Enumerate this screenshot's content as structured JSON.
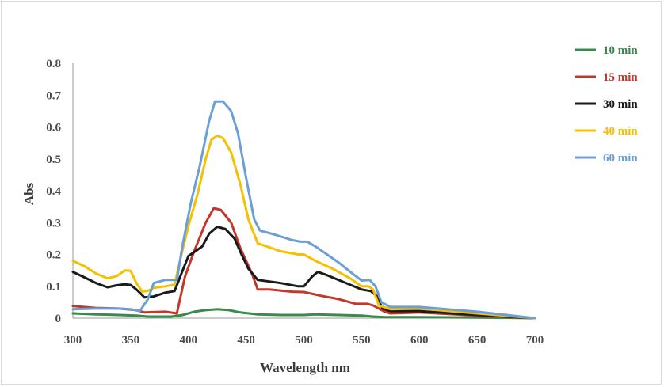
{
  "chart_data": {
    "type": "line",
    "title": "",
    "xlabel": "Wavelength nm",
    "ylabel": "Abs",
    "xlim": [
      300,
      700
    ],
    "ylim": [
      0,
      0.8
    ],
    "xticks": [
      300,
      350,
      400,
      450,
      500,
      550,
      600,
      650,
      700
    ],
    "yticks": [
      "0",
      "0.1",
      "0.2",
      "0.3",
      "0.4",
      "0.5",
      "0.6",
      "0.7",
      "0.8"
    ],
    "grid": false,
    "legend_position": "right",
    "series": [
      {
        "name": "10 min",
        "color": "#3a8a4e",
        "points": [
          [
            300,
            0.015
          ],
          [
            320,
            0.012
          ],
          [
            340,
            0.01
          ],
          [
            355,
            0.008
          ],
          [
            365,
            0.005
          ],
          [
            385,
            0.005
          ],
          [
            395,
            0.01
          ],
          [
            405,
            0.02
          ],
          [
            415,
            0.025
          ],
          [
            425,
            0.028
          ],
          [
            435,
            0.025
          ],
          [
            445,
            0.018
          ],
          [
            460,
            0.012
          ],
          [
            480,
            0.01
          ],
          [
            500,
            0.01
          ],
          [
            510,
            0.012
          ],
          [
            530,
            0.01
          ],
          [
            550,
            0.008
          ],
          [
            560,
            0.005
          ],
          [
            570,
            0.003
          ],
          [
            600,
            0.003
          ],
          [
            650,
            0.002
          ],
          [
            700,
            0.0
          ]
        ]
      },
      {
        "name": "15 min",
        "color": "#c0392b",
        "points": [
          [
            300,
            0.038
          ],
          [
            320,
            0.032
          ],
          [
            340,
            0.03
          ],
          [
            355,
            0.025
          ],
          [
            362,
            0.018
          ],
          [
            380,
            0.02
          ],
          [
            390,
            0.015
          ],
          [
            397,
            0.13
          ],
          [
            405,
            0.21
          ],
          [
            415,
            0.3
          ],
          [
            422,
            0.345
          ],
          [
            428,
            0.34
          ],
          [
            437,
            0.3
          ],
          [
            445,
            0.22
          ],
          [
            455,
            0.14
          ],
          [
            460,
            0.09
          ],
          [
            470,
            0.09
          ],
          [
            490,
            0.083
          ],
          [
            500,
            0.082
          ],
          [
            515,
            0.07
          ],
          [
            530,
            0.06
          ],
          [
            545,
            0.045
          ],
          [
            555,
            0.045
          ],
          [
            560,
            0.04
          ],
          [
            570,
            0.02
          ],
          [
            575,
            0.015
          ],
          [
            600,
            0.018
          ],
          [
            650,
            0.008
          ],
          [
            700,
            0.0
          ]
        ]
      },
      {
        "name": "30 min",
        "color": "#1a1a1a",
        "points": [
          [
            300,
            0.145
          ],
          [
            310,
            0.128
          ],
          [
            320,
            0.11
          ],
          [
            330,
            0.097
          ],
          [
            338,
            0.103
          ],
          [
            345,
            0.106
          ],
          [
            350,
            0.104
          ],
          [
            355,
            0.09
          ],
          [
            362,
            0.065
          ],
          [
            370,
            0.068
          ],
          [
            380,
            0.08
          ],
          [
            388,
            0.085
          ],
          [
            394,
            0.14
          ],
          [
            400,
            0.195
          ],
          [
            406,
            0.21
          ],
          [
            412,
            0.225
          ],
          [
            418,
            0.265
          ],
          [
            425,
            0.287
          ],
          [
            432,
            0.28
          ],
          [
            440,
            0.25
          ],
          [
            446,
            0.2
          ],
          [
            452,
            0.155
          ],
          [
            460,
            0.12
          ],
          [
            480,
            0.11
          ],
          [
            495,
            0.1
          ],
          [
            500,
            0.1
          ],
          [
            507,
            0.13
          ],
          [
            512,
            0.145
          ],
          [
            520,
            0.135
          ],
          [
            530,
            0.12
          ],
          [
            540,
            0.105
          ],
          [
            550,
            0.09
          ],
          [
            558,
            0.085
          ],
          [
            563,
            0.07
          ],
          [
            568,
            0.03
          ],
          [
            575,
            0.022
          ],
          [
            600,
            0.022
          ],
          [
            650,
            0.01
          ],
          [
            700,
            0.0
          ]
        ]
      },
      {
        "name": "40 min",
        "color": "#f5c000",
        "points": [
          [
            300,
            0.18
          ],
          [
            310,
            0.163
          ],
          [
            320,
            0.14
          ],
          [
            330,
            0.125
          ],
          [
            338,
            0.132
          ],
          [
            345,
            0.15
          ],
          [
            350,
            0.148
          ],
          [
            355,
            0.11
          ],
          [
            360,
            0.083
          ],
          [
            365,
            0.086
          ],
          [
            370,
            0.095
          ],
          [
            380,
            0.1
          ],
          [
            388,
            0.105
          ],
          [
            394,
            0.2
          ],
          [
            400,
            0.29
          ],
          [
            408,
            0.39
          ],
          [
            415,
            0.5
          ],
          [
            420,
            0.56
          ],
          [
            425,
            0.573
          ],
          [
            430,
            0.565
          ],
          [
            437,
            0.52
          ],
          [
            445,
            0.42
          ],
          [
            452,
            0.31
          ],
          [
            460,
            0.235
          ],
          [
            480,
            0.21
          ],
          [
            495,
            0.2
          ],
          [
            500,
            0.2
          ],
          [
            510,
            0.18
          ],
          [
            525,
            0.155
          ],
          [
            540,
            0.125
          ],
          [
            550,
            0.1
          ],
          [
            556,
            0.1
          ],
          [
            560,
            0.09
          ],
          [
            565,
            0.04
          ],
          [
            575,
            0.028
          ],
          [
            600,
            0.03
          ],
          [
            650,
            0.015
          ],
          [
            700,
            0.0
          ]
        ]
      },
      {
        "name": "60 min",
        "color": "#6a9fd8",
        "points": [
          [
            300,
            0.028
          ],
          [
            320,
            0.03
          ],
          [
            340,
            0.03
          ],
          [
            350,
            0.028
          ],
          [
            358,
            0.022
          ],
          [
            365,
            0.06
          ],
          [
            370,
            0.11
          ],
          [
            380,
            0.12
          ],
          [
            390,
            0.12
          ],
          [
            395,
            0.23
          ],
          [
            402,
            0.36
          ],
          [
            410,
            0.48
          ],
          [
            418,
            0.62
          ],
          [
            423,
            0.68
          ],
          [
            430,
            0.68
          ],
          [
            437,
            0.65
          ],
          [
            443,
            0.58
          ],
          [
            450,
            0.44
          ],
          [
            457,
            0.31
          ],
          [
            462,
            0.275
          ],
          [
            475,
            0.262
          ],
          [
            490,
            0.245
          ],
          [
            497,
            0.24
          ],
          [
            503,
            0.24
          ],
          [
            510,
            0.225
          ],
          [
            520,
            0.2
          ],
          [
            530,
            0.175
          ],
          [
            542,
            0.14
          ],
          [
            550,
            0.118
          ],
          [
            557,
            0.12
          ],
          [
            562,
            0.1
          ],
          [
            567,
            0.05
          ],
          [
            575,
            0.035
          ],
          [
            600,
            0.035
          ],
          [
            650,
            0.02
          ],
          [
            700,
            0.0
          ]
        ]
      }
    ]
  }
}
